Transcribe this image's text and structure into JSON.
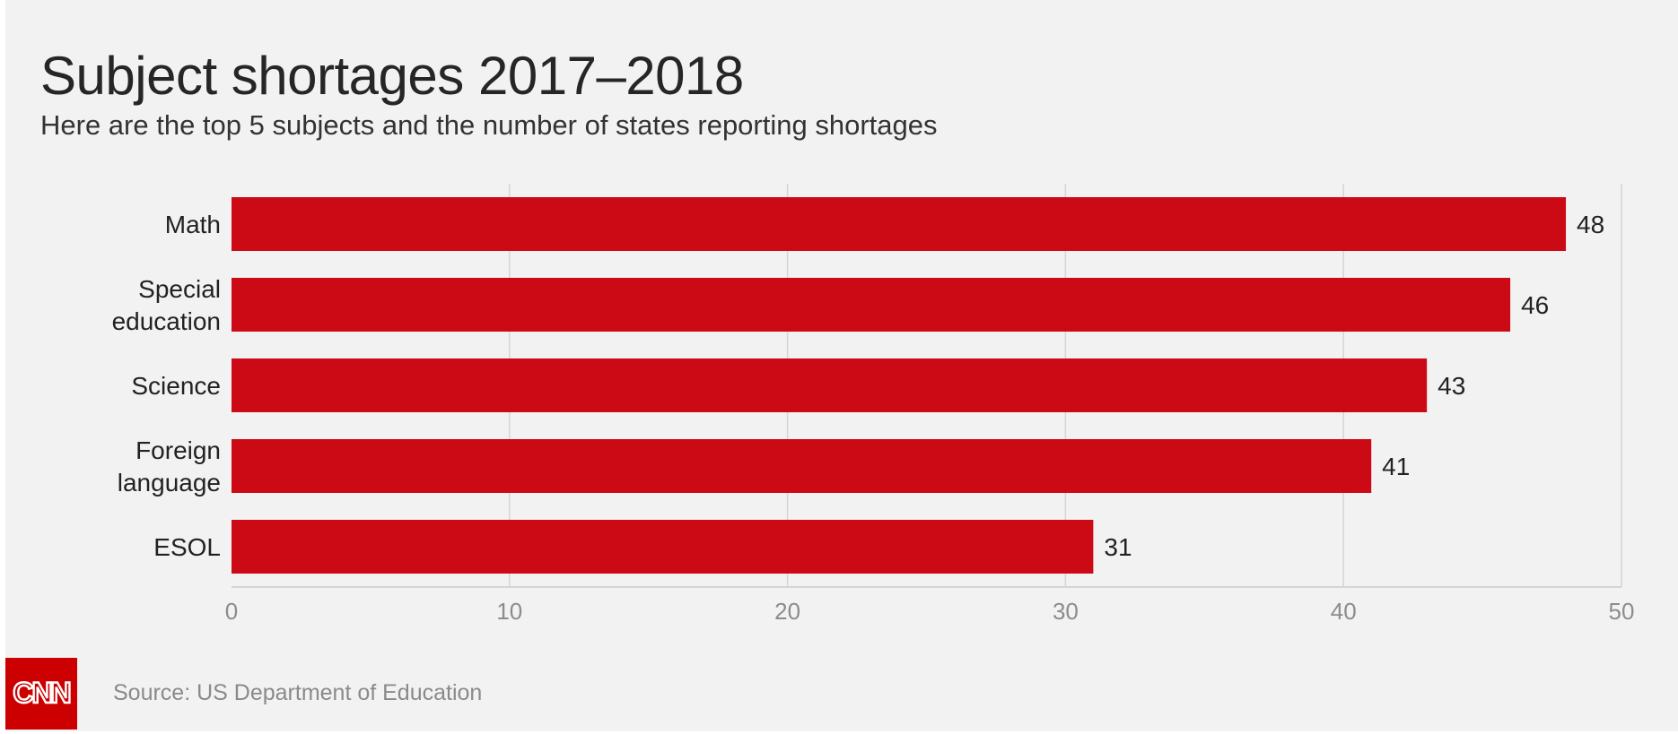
{
  "title": "Subject shortages 2017–2018",
  "subtitle": "Here are the top 5 subjects and the number of states reporting shortages",
  "source": "Source: US Department of Education",
  "logo_text": "CNN",
  "colors": {
    "bar": "#cc0a15",
    "grid": "#d5d5d5",
    "tick": "#8c8c8c",
    "text": "#222222",
    "logo": "#cc0000"
  },
  "chart_data": {
    "type": "bar",
    "orientation": "horizontal",
    "categories": [
      [
        "Math"
      ],
      [
        "Special",
        "education"
      ],
      [
        "Science"
      ],
      [
        "Foreign",
        "language"
      ],
      [
        "ESOL"
      ]
    ],
    "values": [
      48,
      46,
      43,
      41,
      31
    ],
    "xlim": [
      0,
      50
    ],
    "xticks": [
      0,
      10,
      20,
      30,
      40,
      50
    ],
    "grid": true,
    "data_labels": true
  }
}
